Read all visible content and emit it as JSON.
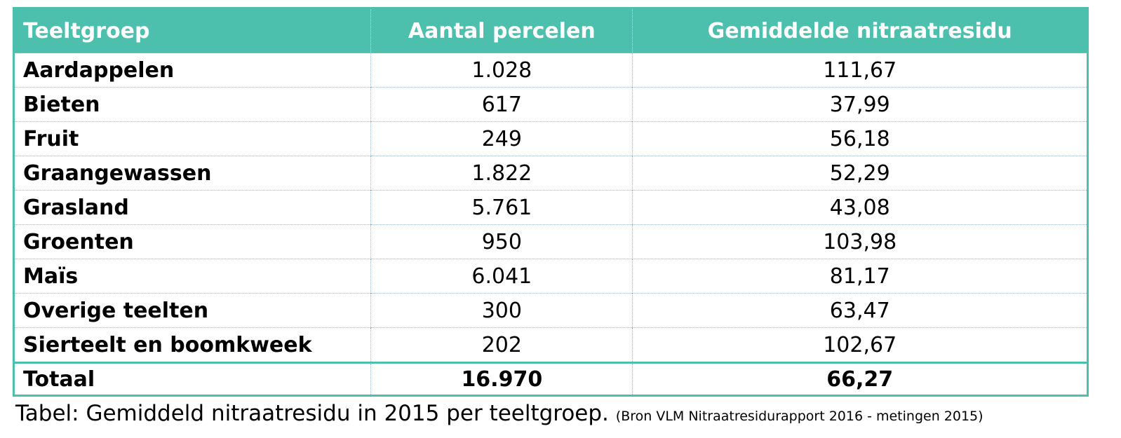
{
  "table": {
    "header": [
      "Teeltgroep",
      "Aantal percelen",
      "Gemiddelde nitraatresidu"
    ],
    "rows": [
      [
        "Aardappelen",
        "1.028",
        "111,67"
      ],
      [
        "Bieten",
        "617",
        "37,99"
      ],
      [
        "Fruit",
        "249",
        "56,18"
      ],
      [
        "Graangewassen",
        "1.822",
        "52,29"
      ],
      [
        "Grasland",
        "5.761",
        "43,08"
      ],
      [
        "Groenten",
        "950",
        "103,98"
      ],
      [
        "Maïs",
        "6.041",
        "81,17"
      ],
      [
        "Overige teelten",
        "300",
        "63,47"
      ],
      [
        "Sierteelt en boomkweek",
        "202",
        "102,67"
      ]
    ],
    "total": [
      "Totaal",
      "16.970",
      "66,27"
    ]
  },
  "caption": {
    "text": "Tabel: Gemiddeld nitraatresidu in 2015 per teeltgroep.",
    "source": "(Bron VLM Nitraatresidurapport 2016 - metingen 2015)"
  }
}
